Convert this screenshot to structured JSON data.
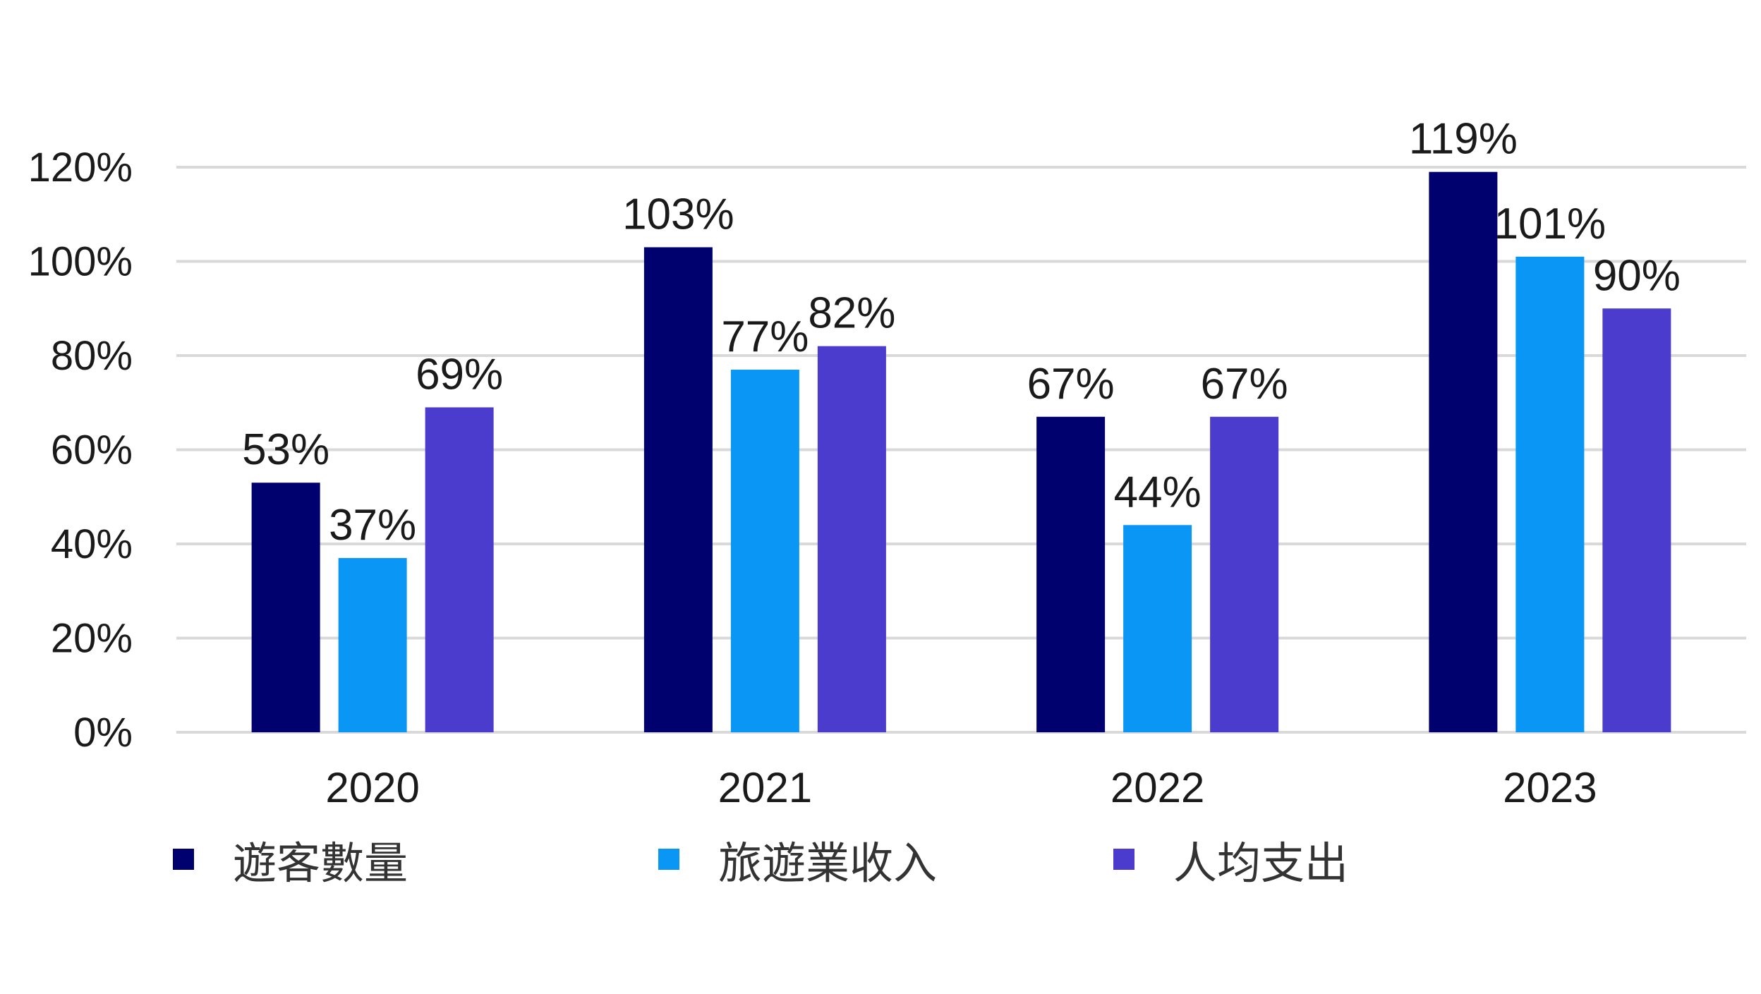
{
  "chart_data": {
    "type": "bar",
    "categories": [
      "2020",
      "2021",
      "2022",
      "2023"
    ],
    "series": [
      {
        "name": "遊客數量",
        "values": [
          53,
          103,
          67,
          119
        ],
        "color": "#00006e"
      },
      {
        "name": "旅遊業收入",
        "values": [
          37,
          77,
          44,
          101
        ],
        "color": "#0a96f5"
      },
      {
        "name": "人均支出",
        "values": [
          69,
          82,
          67,
          90
        ],
        "color": "#4b3ccd"
      }
    ],
    "value_suffix": "%",
    "ylim": [
      0,
      120
    ],
    "yticks": [
      0,
      20,
      40,
      60,
      80,
      100,
      120
    ],
    "ytick_labels": [
      "0%",
      "20%",
      "40%",
      "60%",
      "80%",
      "100%",
      "120%"
    ],
    "title": "",
    "xlabel": "",
    "ylabel": "",
    "grid": true,
    "legend_position": "bottom-left"
  }
}
